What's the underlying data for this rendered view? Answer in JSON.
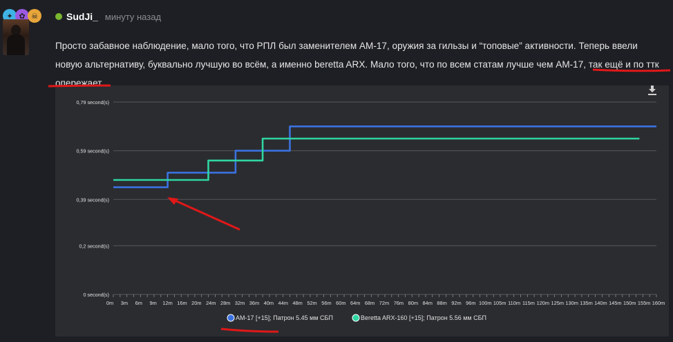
{
  "post": {
    "username": "SudJi_",
    "timestamp": "минуту назад",
    "message_lines": [
      "Просто забавное наблюдение, мало того, что РПЛ был заменителем AM-17, оружия за гильзы и “топовые” активности. Теперь ввели",
      "новую альтернативу, буквально лучшую во всём, а именно beretta ARX. Мало того, что по всем статам лучше чем AM-17, так ещё и по ттк",
      "опережает."
    ],
    "badges": [
      "#3fb2e6",
      "#9b59e0",
      "#e8a53a"
    ],
    "online_color": "#7ab62f"
  },
  "chart": {
    "download_icon": "download-icon"
  },
  "chart_data": {
    "type": "line",
    "step": true,
    "ylim": [
      0,
      0.79
    ],
    "yticks": [
      {
        "value": 0,
        "label": "0 second(s)"
      },
      {
        "value": 0.2,
        "label": "0,2 second(s)"
      },
      {
        "value": 0.39,
        "label": "0,39 second(s)"
      },
      {
        "value": 0.59,
        "label": "0,59 second(s)"
      },
      {
        "value": 0.79,
        "label": "0,79 second(s)"
      }
    ],
    "x_labels": [
      "0m",
      "3m",
      "6m",
      "9m",
      "12m",
      "16m",
      "20m",
      "24m",
      "28m",
      "32m",
      "36m",
      "40m",
      "44m",
      "48m",
      "52m",
      "56m",
      "60m",
      "64m",
      "68m",
      "72m",
      "76m",
      "80m",
      "84m",
      "88m",
      "92m",
      "96m",
      "100m",
      "105m",
      "110m",
      "115m",
      "120m",
      "125m",
      "130m",
      "135m",
      "140m",
      "145m",
      "150m",
      "155m",
      "160m"
    ],
    "grid": true,
    "legend_position": "bottom",
    "series": [
      {
        "name": "AM-17 [+15]; Патрон 5.45 мм СБП",
        "color": "#3a72e0",
        "points": [
          [
            0,
            0.44
          ],
          [
            16,
            0.44
          ],
          [
            16,
            0.5
          ],
          [
            36,
            0.5
          ],
          [
            36,
            0.59
          ],
          [
            52,
            0.59
          ],
          [
            52,
            0.69
          ],
          [
            160,
            0.69
          ]
        ]
      },
      {
        "name": "Beretta ARX-160 [+15]; Патрон 5.56 мм СБП",
        "color": "#2fd6a2",
        "points": [
          [
            0,
            0.47
          ],
          [
            28,
            0.47
          ],
          [
            28,
            0.55
          ],
          [
            44,
            0.55
          ],
          [
            44,
            0.64
          ],
          [
            155,
            0.64
          ]
        ]
      }
    ]
  }
}
